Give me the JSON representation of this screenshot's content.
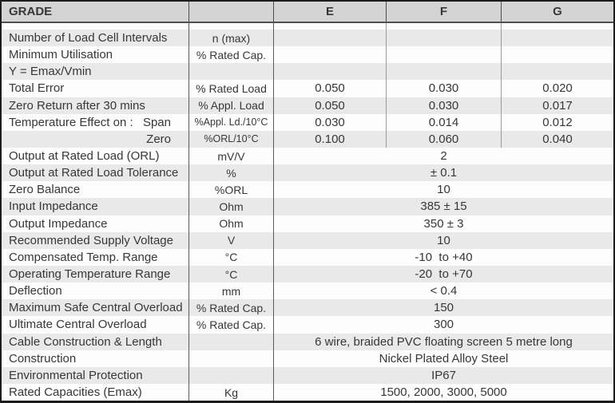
{
  "colors": {
    "header_bg": "#d4d4d4",
    "stripe": "#e9e9e9",
    "border": "#1c1c1c",
    "grid": "#5a5a5a",
    "grid_light": "#9a9a9a",
    "text": "#373737"
  },
  "header": {
    "grade_label": "GRADE",
    "units_label": "",
    "cols": [
      "E",
      "F",
      "G"
    ]
  },
  "rows": [
    {
      "param": "Number of Load Cell Intervals",
      "unit": "n (max)",
      "values": [
        "",
        "",
        ""
      ]
    },
    {
      "param": "Minimum Utilisation",
      "unit": "% Rated Cap.",
      "values": [
        "",
        "",
        ""
      ]
    },
    {
      "param": "Y = Emax/Vmin",
      "unit": "",
      "values": [
        "",
        "",
        ""
      ]
    },
    {
      "param": "Total Error",
      "unit": "% Rated Load",
      "values": [
        "0.050",
        "0.030",
        "0.020"
      ]
    },
    {
      "param": "Zero Return after 30 mins",
      "unit": "% Appl. Load",
      "values": [
        "0.050",
        "0.030",
        "0.017"
      ]
    },
    {
      "param": "Temperature Effect on :",
      "param_right": "Span",
      "unit": "%Appl. Ld./10°C",
      "values": [
        "0.030",
        "0.014",
        "0.012"
      ]
    },
    {
      "param": "",
      "param_right": "Zero",
      "unit": "%ORL/10°C",
      "values": [
        "0.100",
        "0.060",
        "0.040"
      ]
    },
    {
      "param": "Output at Rated Load (ORL)",
      "unit": "mV/V",
      "merged": "2"
    },
    {
      "param": "Output at Rated Load Tolerance",
      "unit": "%",
      "merged": "± 0.1"
    },
    {
      "param": "Zero Balance",
      "unit": "%ORL",
      "merged": "10"
    },
    {
      "param": "Input Impedance",
      "unit": "Ohm",
      "merged": "385 ± 15"
    },
    {
      "param": "Output Impedance",
      "unit": "Ohm",
      "merged": "350 ± 3"
    },
    {
      "param": "Recommended Supply Voltage",
      "unit": "V",
      "merged": "10"
    },
    {
      "param": "Compensated Temp. Range",
      "unit": "°C",
      "merged": "-10  to +40"
    },
    {
      "param": "Operating Temperature Range",
      "unit": "°C",
      "merged": "-20  to +70"
    },
    {
      "param": "Deflection",
      "unit": "mm",
      "merged": "< 0.4"
    },
    {
      "param": "Maximum Safe Central Overload",
      "unit": "% Rated Cap.",
      "merged": "150"
    },
    {
      "param": "Ultimate Central Overload",
      "unit": "% Rated Cap.",
      "merged": "300"
    },
    {
      "param": "Cable Construction & Length",
      "unit": "",
      "merged": "6 wire, braided PVC floating screen 5 metre long"
    },
    {
      "param": "Construction",
      "unit": "",
      "merged": "Nickel Plated Alloy Steel"
    },
    {
      "param": "Environmental Protection",
      "unit": "",
      "merged": "IP67"
    },
    {
      "param": "Rated Capacities (Emax)",
      "unit": "Kg",
      "merged": "1500, 2000, 3000, 5000"
    }
  ]
}
